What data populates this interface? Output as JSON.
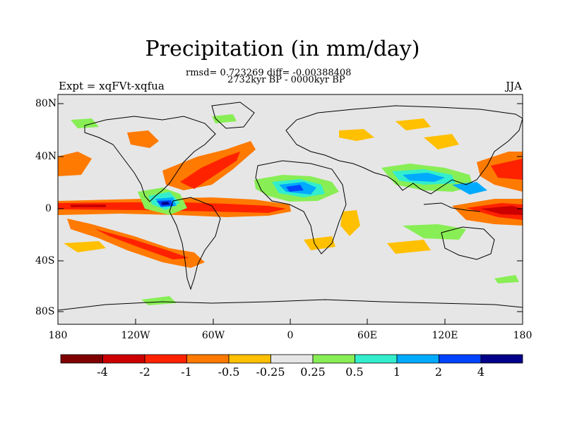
{
  "title": "Precipitation (in mm/day)",
  "stats_line": "rmsd= 0.723269 diff= -0.00388408",
  "period_line": "2732kyr BP - 0000kyr BP",
  "experiment_label": "Expt = xqFVt-xqfua",
  "season_label": "JJA",
  "lat_ticks": [
    "80N",
    "40N",
    "0",
    "40S",
    "80S"
  ],
  "lon_ticks": [
    "180",
    "120W",
    "60W",
    "0",
    "60E",
    "120E",
    "180"
  ],
  "colorbar": {
    "labels": [
      "-4",
      "-2",
      "-1",
      "-0.5",
      "-0.25",
      "0.25",
      "0.5",
      "1",
      "2",
      "4"
    ],
    "colors": [
      "#7f0000",
      "#cc0000",
      "#ff2200",
      "#ff7a00",
      "#ffc000",
      "#e6e6e6",
      "#88ee55",
      "#33eecc",
      "#00aaff",
      "#0044ff",
      "#000088"
    ]
  },
  "colors": {
    "background": "#e6e6e6",
    "coast": "#000000"
  }
}
